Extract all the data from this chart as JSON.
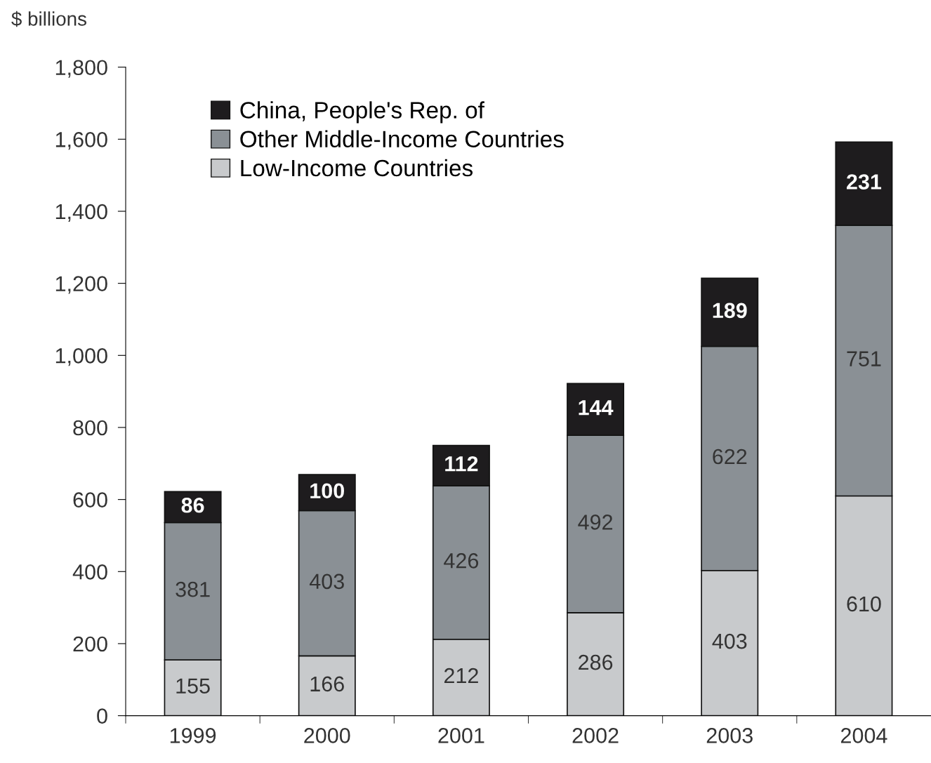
{
  "chart_data": {
    "type": "bar",
    "stacked": true,
    "ylabel": "$ billions",
    "categories": [
      "1999",
      "2000",
      "2001",
      "2002",
      "2003",
      "2004"
    ],
    "series": [
      {
        "name": "Low-Income Countries",
        "color": "#c8cacc",
        "values": [
          155,
          166,
          212,
          286,
          403,
          610
        ]
      },
      {
        "name": "Other Middle-Income Countries",
        "color": "#8a9095",
        "values": [
          381,
          403,
          426,
          492,
          622,
          751
        ]
      },
      {
        "name": "China, People's Rep. of",
        "color": "#1e1c1e",
        "values": [
          86,
          100,
          112,
          144,
          189,
          231
        ]
      }
    ],
    "ylim": [
      0,
      1800
    ],
    "yticks": [
      0,
      200,
      400,
      600,
      800,
      {
        "value": 1000,
        "label": "1,000"
      },
      {
        "value": 1200,
        "label": "1,200"
      },
      {
        "value": 1400,
        "label": "1,400"
      },
      {
        "value": 1600,
        "label": "1,600"
      },
      {
        "value": 1800,
        "label": "1,800"
      }
    ],
    "data_labels": true,
    "legend": "top left",
    "grid": false
  }
}
